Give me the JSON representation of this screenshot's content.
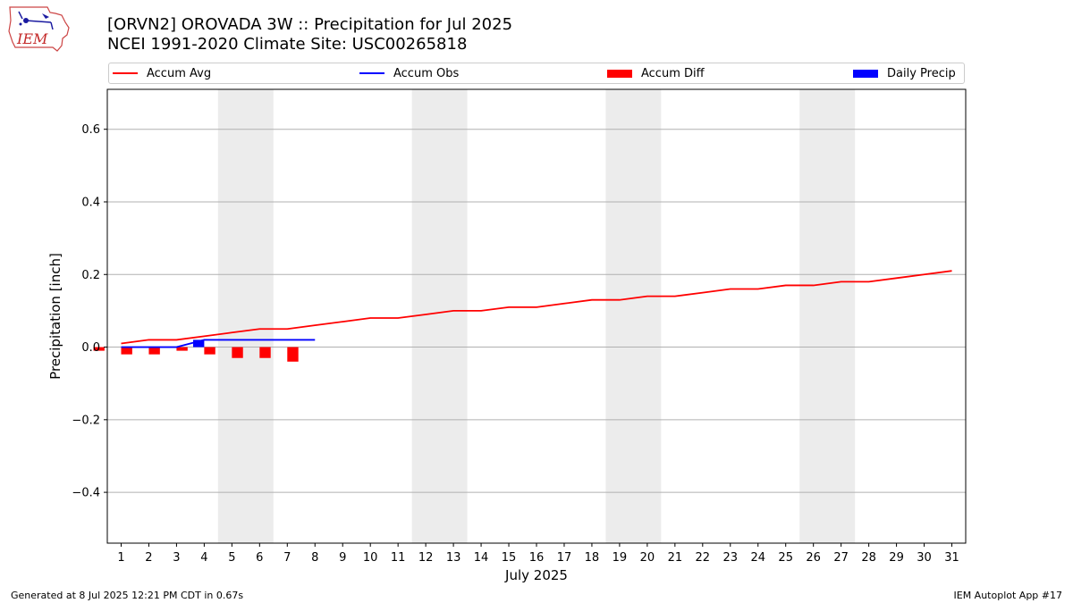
{
  "logo": {
    "text": "IEM",
    "icon": "iem-logo-icon"
  },
  "title_line1": "[ORVN2] OROVADA 3W :: Precipitation for Jul 2025",
  "title_line2": "NCEI 1991-2020 Climate Site: USC00265818",
  "legend": [
    {
      "label": "Accum Avg",
      "color": "#ff0000",
      "kind": "line"
    },
    {
      "label": "Accum Obs",
      "color": "#0000ff",
      "kind": "line"
    },
    {
      "label": "Accum Diff",
      "color": "#ff0000",
      "kind": "box"
    },
    {
      "label": "Daily Precip",
      "color": "#0000ff",
      "kind": "box"
    }
  ],
  "footer_left": "Generated at 8 Jul 2025 12:21 PM CDT in 0.67s",
  "footer_right": "IEM Autoplot App #17",
  "chart_data": {
    "type": "line",
    "xlabel": "July 2025",
    "ylabel": "Precipitation [inch]",
    "xlim": [
      0.5,
      31.5
    ],
    "ylim": [
      -0.54,
      0.71
    ],
    "x_ticks": [
      1,
      2,
      3,
      4,
      5,
      6,
      7,
      8,
      9,
      10,
      11,
      12,
      13,
      14,
      15,
      16,
      17,
      18,
      19,
      20,
      21,
      22,
      23,
      24,
      25,
      26,
      27,
      28,
      29,
      30,
      31
    ],
    "y_ticks": [
      -0.4,
      -0.2,
      0.0,
      0.2,
      0.4,
      0.6
    ],
    "y_tick_labels": [
      "−0.4",
      "−0.2",
      "0.0",
      "0.2",
      "0.4",
      "0.6"
    ],
    "grid": "y-major",
    "weekend_shading": [
      [
        5,
        6
      ],
      [
        12,
        13
      ],
      [
        19,
        20
      ],
      [
        26,
        27
      ]
    ],
    "accum_avg": {
      "name": "Accum Avg",
      "color": "#ff0000",
      "x": [
        1,
        2,
        3,
        4,
        5,
        6,
        7,
        8,
        9,
        10,
        11,
        12,
        13,
        14,
        15,
        16,
        17,
        18,
        19,
        20,
        21,
        22,
        23,
        24,
        25,
        26,
        27,
        28,
        29,
        30,
        31
      ],
      "values": [
        0.01,
        0.02,
        0.02,
        0.03,
        0.04,
        0.05,
        0.05,
        0.06,
        0.07,
        0.08,
        0.08,
        0.09,
        0.1,
        0.1,
        0.11,
        0.11,
        0.12,
        0.13,
        0.13,
        0.14,
        0.14,
        0.15,
        0.16,
        0.16,
        0.17,
        0.17,
        0.18,
        0.18,
        0.19,
        0.2,
        0.21
      ]
    },
    "accum_obs": {
      "name": "Accum Obs",
      "color": "#0000ff",
      "x": [
        1,
        2,
        3,
        4,
        5,
        6,
        7,
        8
      ],
      "values": [
        0.0,
        0.0,
        0.0,
        0.02,
        0.02,
        0.02,
        0.02,
        0.02
      ]
    },
    "accum_diff": {
      "name": "Accum Diff",
      "color": "#ff0000",
      "x": [
        1,
        2,
        3,
        4,
        5,
        6,
        7,
        8
      ],
      "values": [
        -0.01,
        -0.02,
        -0.02,
        -0.01,
        -0.02,
        -0.03,
        -0.03,
        -0.04
      ]
    },
    "daily_precip": {
      "name": "Daily Precip",
      "color": "#0000ff",
      "x": [
        1,
        2,
        3,
        4,
        5,
        6,
        7,
        8
      ],
      "values": [
        0.0,
        0.0,
        0.0,
        0.02,
        0.0,
        0.0,
        0.0,
        0.0
      ]
    }
  }
}
